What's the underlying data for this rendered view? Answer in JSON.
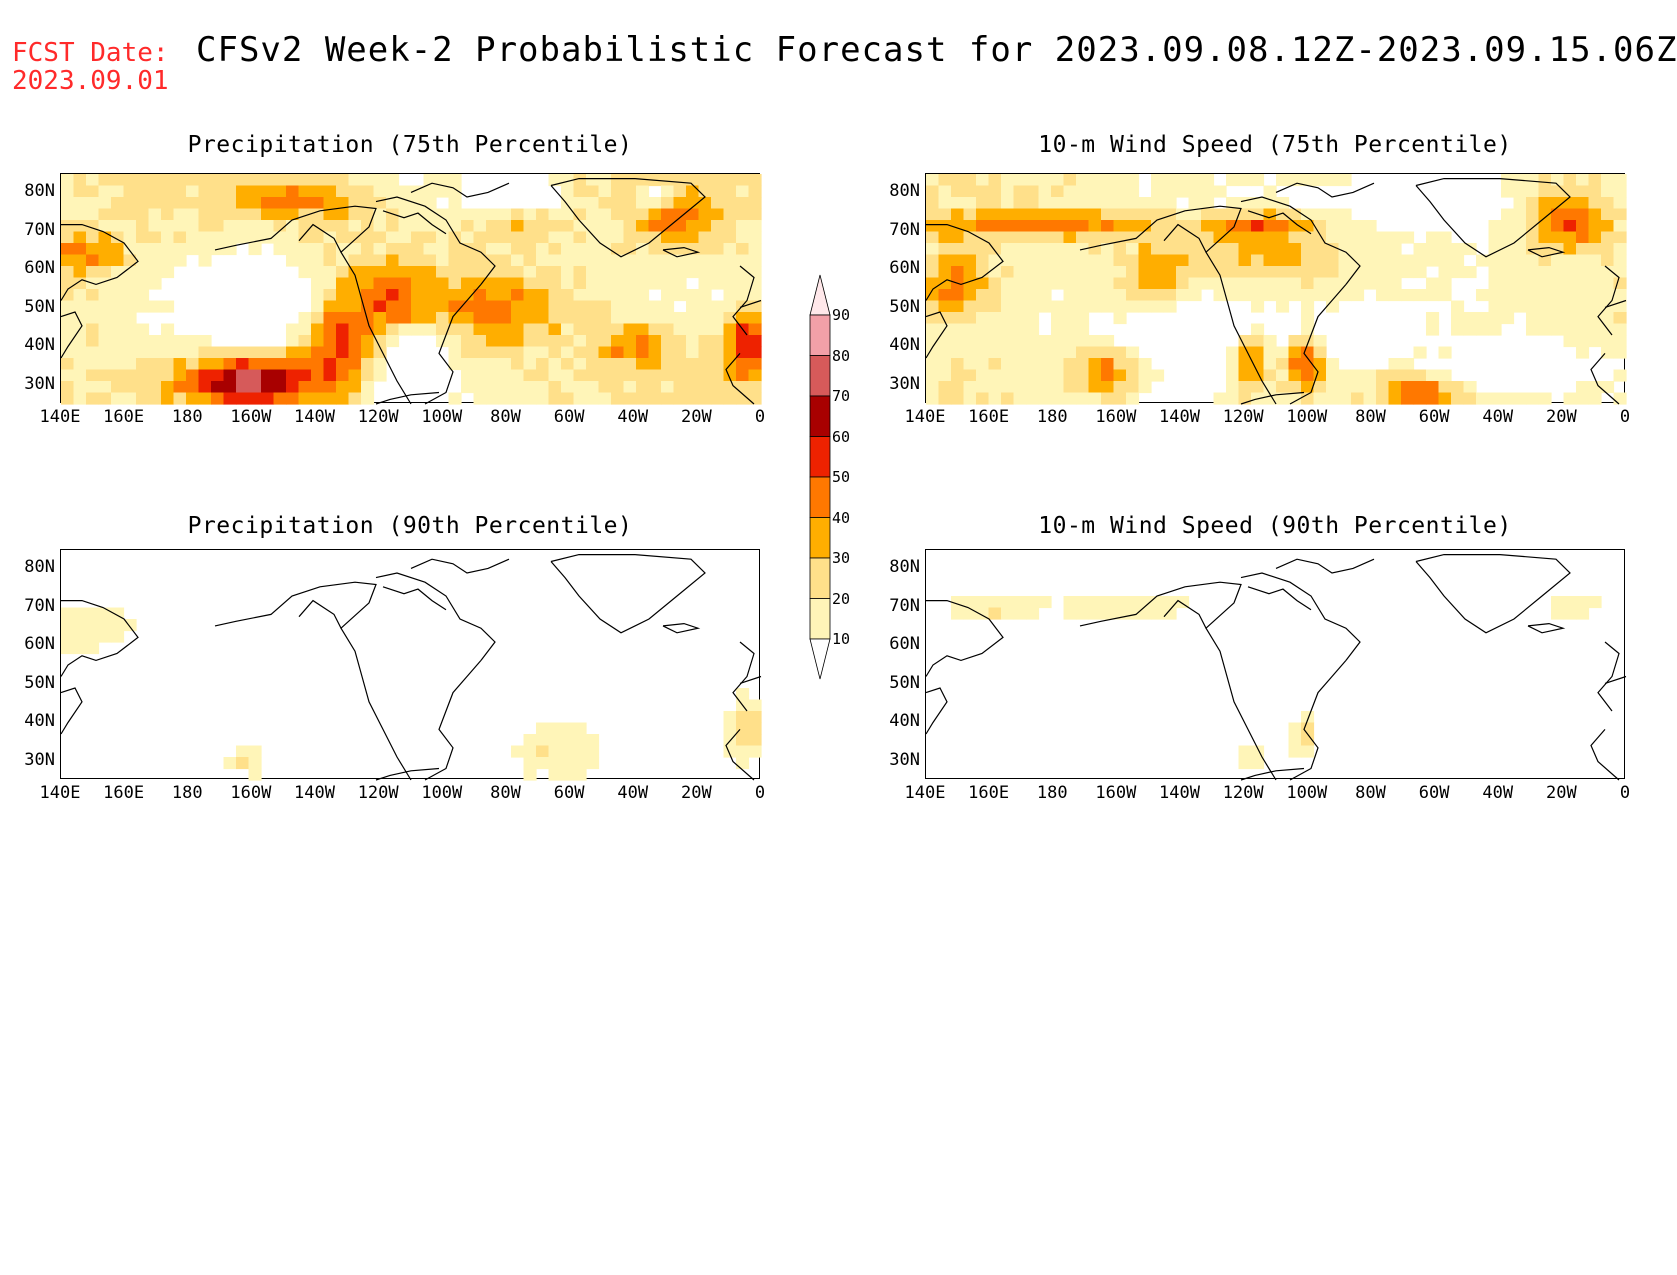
{
  "header": {
    "fcst_label": "FCST Date:",
    "fcst_date": "2023.09.01",
    "title": "CFSv2 Week-2 Probabilistic Forecast for 2023.09.08.12Z-2023.09.15.06Z"
  },
  "panels": [
    {
      "id": "precip75",
      "title": "Precipitation (75th Percentile)",
      "intensity": 1.0
    },
    {
      "id": "wind75",
      "title": "10-m Wind Speed (75th Percentile)",
      "intensity": 0.9
    },
    {
      "id": "precip90",
      "title": "Precipitation (90th Percentile)",
      "intensity": 0.35
    },
    {
      "id": "wind90",
      "title": "10-m Wind Speed (90th Percentile)",
      "intensity": 0.3
    }
  ],
  "axes": {
    "lat_labels": [
      "80N",
      "70N",
      "60N",
      "50N",
      "40N",
      "30N"
    ],
    "lon_labels": [
      "140E",
      "160E",
      "180",
      "160W",
      "140W",
      "120W",
      "100W",
      "80W",
      "60W",
      "40W",
      "20W",
      "0"
    ]
  },
  "colorbar": {
    "levels": [
      "10",
      "20",
      "30",
      "40",
      "50",
      "60",
      "70",
      "80",
      "90"
    ],
    "colors": [
      "#ffffff",
      "#fff5b8",
      "#ffe08a",
      "#ffae00",
      "#ff7800",
      "#ee2200",
      "#a80000",
      "#d65a5a",
      "#f2a0a8",
      "#ffe8ea"
    ]
  }
}
